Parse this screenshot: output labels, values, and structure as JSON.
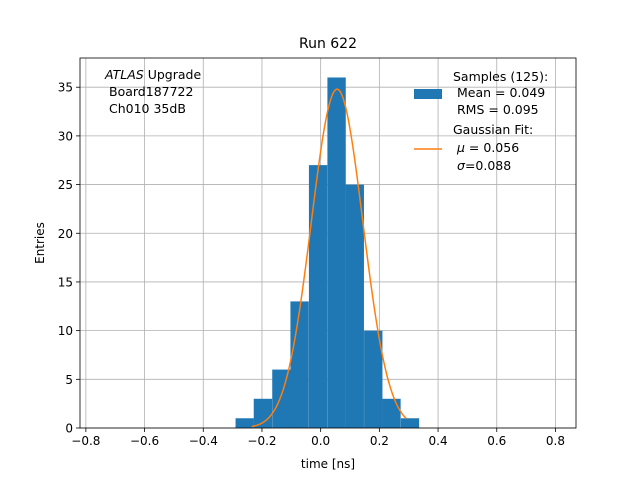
{
  "chart_data": {
    "type": "bar",
    "title": "Run 622",
    "xlabel": "time [ns]",
    "ylabel": "Entries",
    "xlim": [
      -0.82,
      0.87
    ],
    "ylim": [
      0,
      38
    ],
    "grid": true,
    "x_ticks": [
      -0.8,
      -0.6,
      -0.4,
      -0.2,
      0.0,
      0.2,
      0.4,
      0.6,
      0.8
    ],
    "x_tick_labels": [
      "−0.8",
      "−0.6",
      "−0.4",
      "−0.2",
      "0.0",
      "0.2",
      "0.4",
      "0.6",
      "0.8"
    ],
    "y_ticks": [
      0,
      5,
      10,
      15,
      20,
      25,
      30,
      35
    ],
    "y_tick_labels": [
      "0",
      "5",
      "10",
      "15",
      "20",
      "25",
      "30",
      "35"
    ],
    "bin_width": 0.0625,
    "bins_left": [
      -0.29,
      -0.228,
      -0.165,
      -0.103,
      -0.04,
      0.023,
      0.085,
      0.148,
      0.21,
      0.273
    ],
    "counts": [
      1,
      3,
      6,
      13,
      27,
      36,
      25,
      10,
      3,
      1
    ],
    "bar_color": "#1f77b4",
    "fit": {
      "mu": 0.056,
      "sigma": 0.088,
      "amplitude": 34.8,
      "x_range": [
        -0.235,
        0.292
      ],
      "color": "#ff7f0e"
    },
    "annotation": {
      "experiment": "ATLAS",
      "experiment_suffix": " Upgrade",
      "board": "Board187722",
      "channel": "Ch010 35dB"
    },
    "legend": {
      "position": "top-right",
      "samples_title": "Samples (125):",
      "samples_mean": "Mean = 0.049",
      "samples_rms": "RMS = 0.095",
      "fit_title": "Gaussian Fit:",
      "fit_mu_symbol": "μ",
      "fit_mu_value": " = 0.056",
      "fit_sigma_symbol": "σ",
      "fit_sigma_value": "=0.088"
    }
  }
}
